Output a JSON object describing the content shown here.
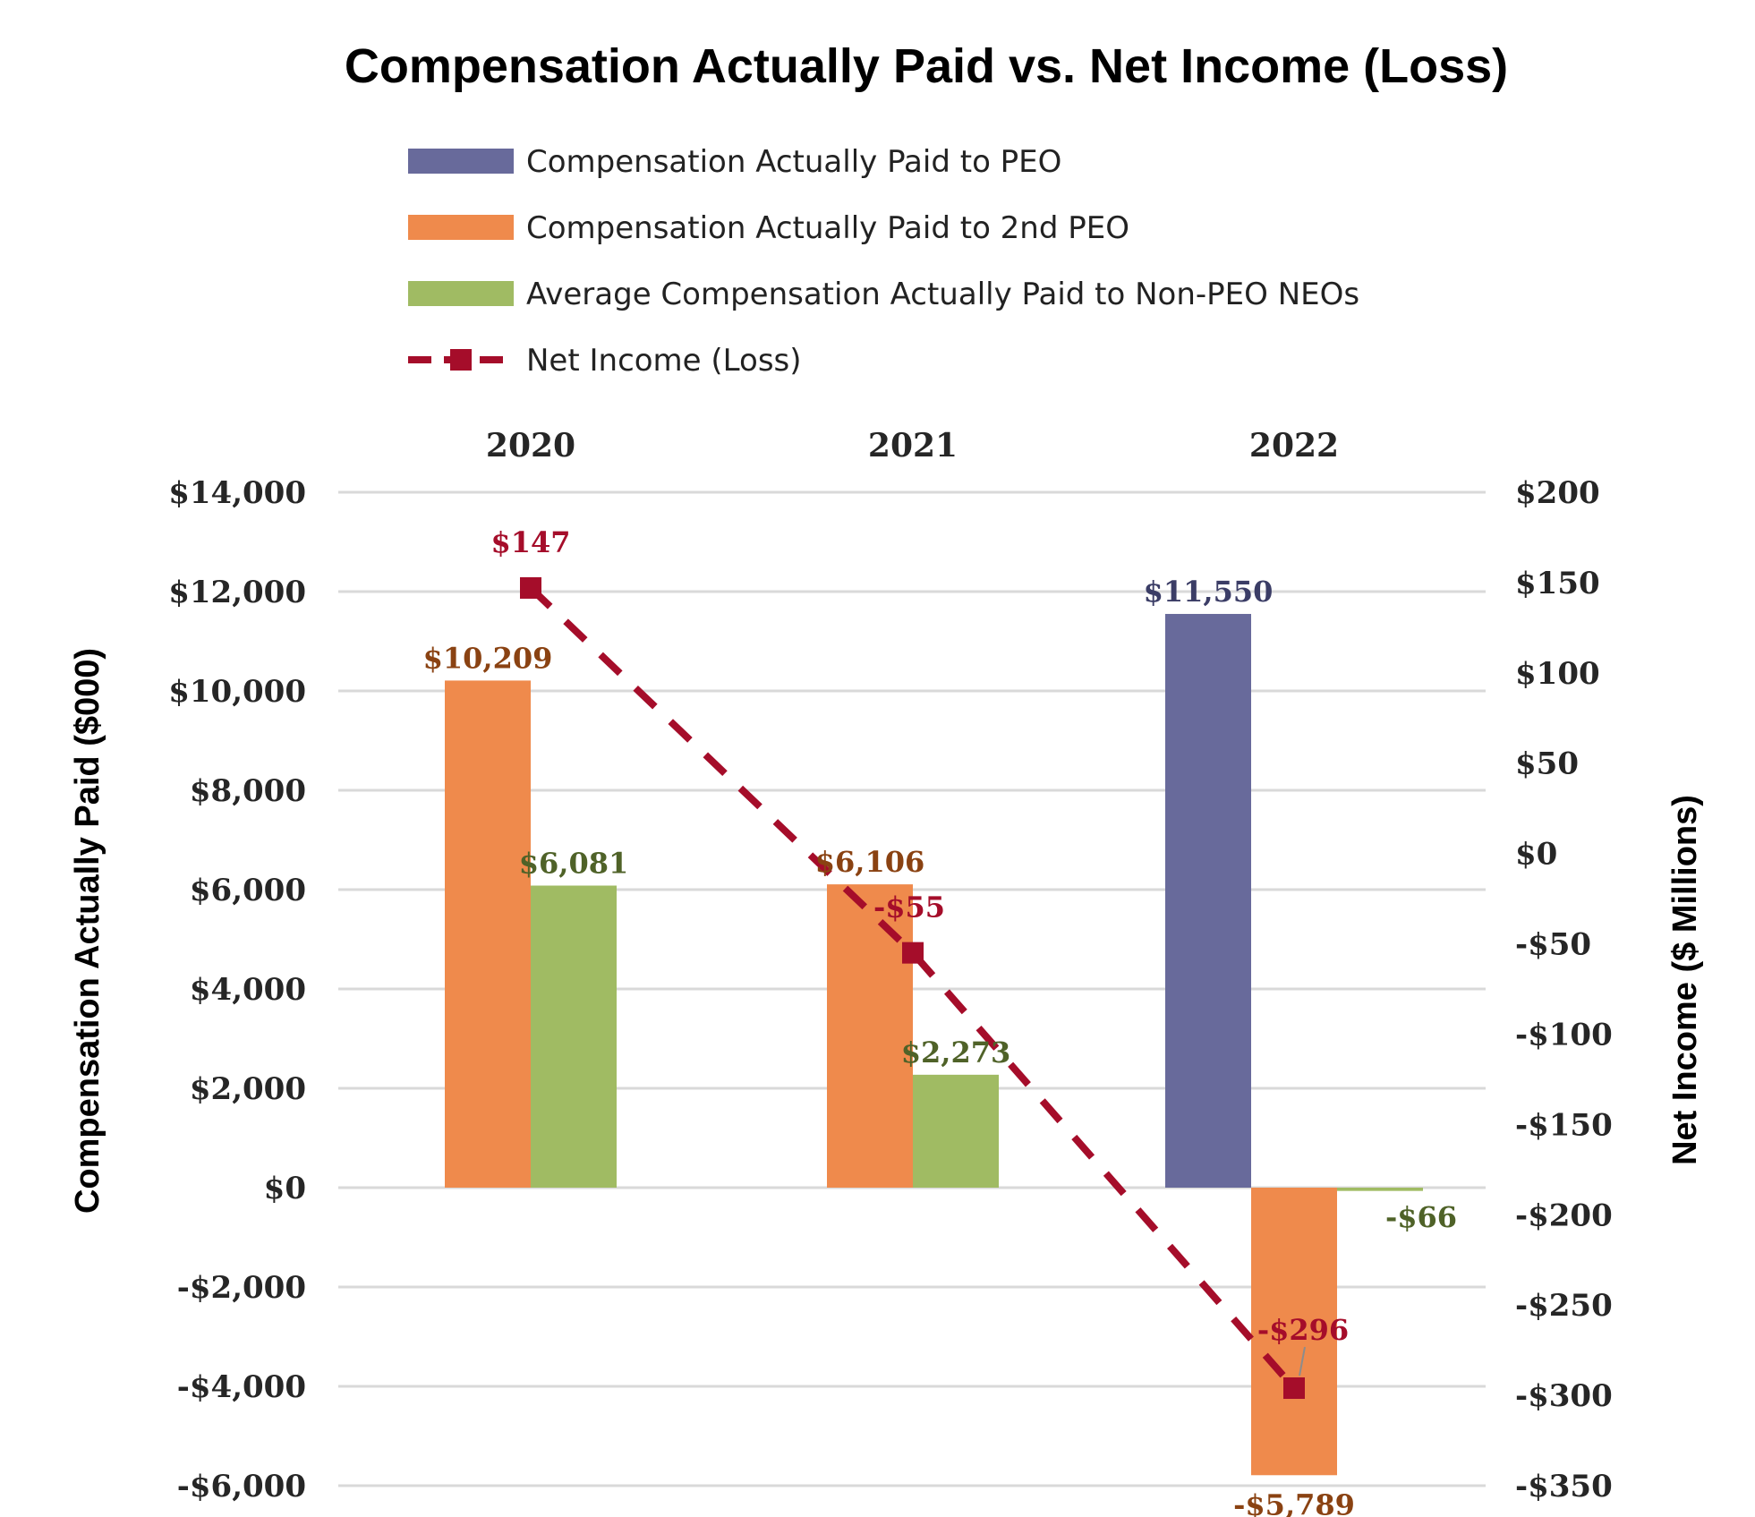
{
  "colors": {
    "peo": "#686a9b",
    "peo2": "#ef8a4c",
    "neo": "#a0bb63",
    "net": "#a50d2a",
    "peo_label": "#3b3d66",
    "peo2_label": "#8a4212",
    "neo_label": "#4f6228",
    "net_label": "#a50d2a"
  },
  "chart_data": {
    "type": "bar",
    "title": "Compensation Actually Paid vs. Net Income (Loss)",
    "categories": [
      "2020",
      "2021",
      "2022"
    ],
    "ylabel": "Compensation Actually Paid ($000)",
    "y2label": "Net Income ($ Millions)",
    "ylim": [
      -6000,
      14000
    ],
    "y_ticks": [
      14000,
      12000,
      10000,
      8000,
      6000,
      4000,
      2000,
      0,
      -2000,
      -4000,
      -6000
    ],
    "y_tick_labels": [
      "$14,000",
      "$12,000",
      "$10,000",
      "$8,000",
      "$6,000",
      "$4,000",
      "$2,000",
      "$0",
      "-$2,000",
      "-$4,000",
      "-$6,000"
    ],
    "y2lim": [
      -350,
      200
    ],
    "y2_ticks": [
      200,
      150,
      100,
      50,
      0,
      -50,
      -100,
      -150,
      -200,
      -250,
      -300,
      -350
    ],
    "y2_tick_labels": [
      "$200",
      "$150",
      "$100",
      "$50",
      "$0",
      "-$50",
      "-$100",
      "-$150",
      "-$200",
      "-$250",
      "-$300",
      "-$350"
    ],
    "legend_position": "top",
    "grid": true,
    "series": [
      {
        "key": "peo",
        "name": "Compensation Actually Paid to PEO",
        "kind": "bar",
        "values": [
          null,
          null,
          11550
        ],
        "labels": [
          "",
          "",
          "$11,550"
        ]
      },
      {
        "key": "peo2",
        "name": "Compensation Actually Paid to 2nd PEO",
        "kind": "bar",
        "values": [
          10209,
          6106,
          -5789
        ],
        "labels": [
          "$10,209",
          "$6,106",
          "-$5,789"
        ]
      },
      {
        "key": "neo",
        "name": "Average Compensation Actually Paid to Non-PEO NEOs",
        "kind": "bar",
        "values": [
          6081,
          2273,
          -66
        ],
        "labels": [
          "$6,081",
          "$2,273",
          "-$66"
        ]
      },
      {
        "key": "net",
        "name": "Net Income (Loss)",
        "kind": "line",
        "axis": "secondary",
        "style": "dashed-square-markers",
        "values": [
          147,
          -55,
          -296
        ],
        "labels": [
          "$147",
          "-$55",
          "-$296"
        ]
      }
    ]
  }
}
